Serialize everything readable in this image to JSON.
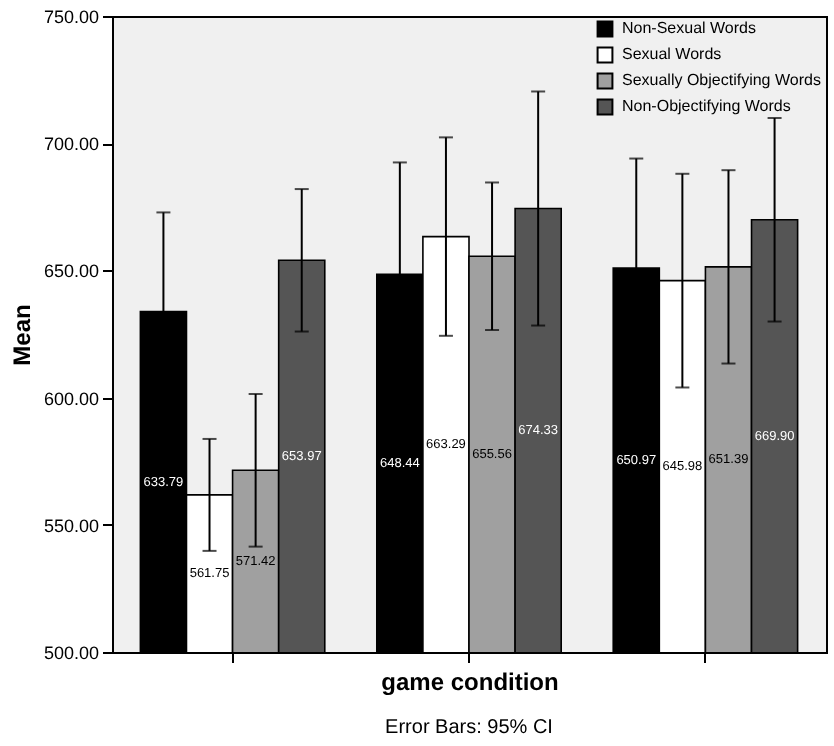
{
  "chart_data": {
    "type": "bar",
    "xlabel": "game condition",
    "ylabel": "Mean",
    "categories": [
      null,
      null,
      null
    ],
    "series": [
      {
        "name": "Non-Sexual Words",
        "color": "#000000",
        "values": [
          633.79,
          648.44,
          650.97
        ],
        "errors": [
          39,
          44,
          43
        ],
        "value_labels": [
          "633.79",
          "648.44",
          "650.97"
        ]
      },
      {
        "name": "Sexual Words",
        "color": "#ffffff",
        "values": [
          561.75,
          663.29,
          645.98
        ],
        "errors": [
          22,
          39,
          42
        ],
        "value_labels": [
          "561.75",
          "663.29",
          "645.98"
        ]
      },
      {
        "name": "Sexually Objectifying Words",
        "color": "#a0a0a0",
        "values": [
          571.42,
          655.56,
          651.39
        ],
        "errors": [
          30,
          29,
          38
        ],
        "value_labels": [
          "571.42",
          "655.56",
          "651.39"
        ]
      },
      {
        "name": "Non-Objectifying Words",
        "color": "#555555",
        "values": [
          653.97,
          674.33,
          669.9
        ],
        "errors": [
          28,
          46,
          40
        ],
        "value_labels": [
          "653.97",
          "674.33",
          "669.90"
        ]
      }
    ],
    "ylim": [
      500,
      750
    ],
    "yticks": [
      {
        "value": 500,
        "label": "500.00"
      },
      {
        "value": 550,
        "label": "550.00"
      },
      {
        "value": 600,
        "label": "600.00"
      },
      {
        "value": 650,
        "label": "650.00"
      },
      {
        "value": 700,
        "label": "700.00"
      },
      {
        "value": 750,
        "label": "750.00"
      }
    ],
    "tick_labels": "y",
    "legend": "top right",
    "grid": false,
    "annotations": [
      "Error Bars: 95% CI"
    ]
  }
}
